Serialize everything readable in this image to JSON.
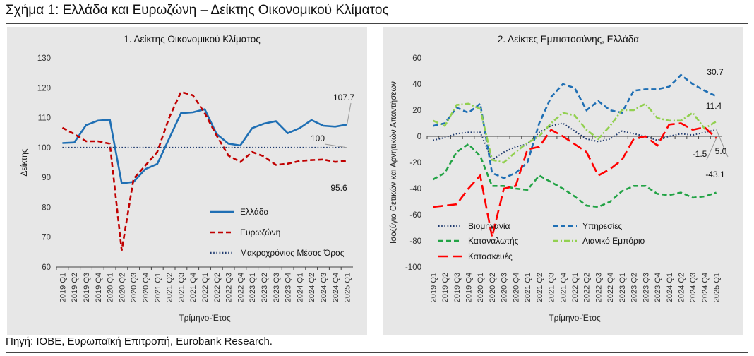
{
  "figure_title": "Σχήμα 1: Ελλάδα και Ευρωζώνη – Δείκτης Οικονομικού Κλίματος",
  "source": "Πηγή: IOBE, Ευρωπαϊκή Επιτροπή, Eurobank Research.",
  "chart_data": [
    {
      "type": "line",
      "title": "1. Δείκτης Οικονομικού Κλίματος",
      "xlabel": "Τρίμηνο-Έτος",
      "ylabel": "Δείκτης",
      "ylim": [
        60,
        130
      ],
      "yticks": [
        "60",
        "70",
        "80",
        "90",
        "100",
        "110",
        "120",
        "130"
      ],
      "categories": [
        "2019 Q1",
        "2019 Q2",
        "2019 Q3",
        "2019 Q4",
        "2020 Q1",
        "2020 Q2",
        "2020 Q3",
        "2020 Q4",
        "2021 Q1",
        "2021 Q2",
        "2021 Q3",
        "2021 Q4",
        "2022 Q1",
        "2022 Q2",
        "2022 Q3",
        "2022 Q4",
        "2023 Q1",
        "2023 Q2",
        "2023 Q3",
        "2023 Q4",
        "2024 Q1",
        "2024 Q2",
        "2024 Q3",
        "2024 Q4",
        "2025 Q1"
      ],
      "legend_position": "bottom-right",
      "grid": false,
      "series": [
        {
          "name": "Ελλάδα",
          "color": "#1f6fb4",
          "dash": "solid",
          "values": [
            101.5,
            101.7,
            107.5,
            109.0,
            109.3,
            88.0,
            88.5,
            92.8,
            94.5,
            103.0,
            111.5,
            111.8,
            112.8,
            104.5,
            101.3,
            100.7,
            106.5,
            108.0,
            108.8,
            104.8,
            106.5,
            109.2,
            107.3,
            107.0,
            107.7
          ]
        },
        {
          "name": "Ευρωζώνη",
          "color": "#c00000",
          "dash": "dashed",
          "values": [
            106.6,
            104.5,
            102.1,
            102.1,
            101.3,
            65.5,
            89.5,
            94.0,
            98.5,
            110.0,
            118.6,
            117.5,
            111.5,
            104.0,
            97.3,
            95.2,
            98.5,
            97.0,
            94.2,
            94.6,
            95.5,
            95.8,
            96.0,
            95.2,
            95.6
          ]
        },
        {
          "name": "Μακροχρόνιος Μέσος Όρος",
          "color": "#1f3a6e",
          "dash": "dotted",
          "values": [
            100,
            100,
            100,
            100,
            100,
            100,
            100,
            100,
            100,
            100,
            100,
            100,
            100,
            100,
            100,
            100,
            100,
            100,
            100,
            100,
            100,
            100,
            100,
            100,
            100
          ]
        }
      ],
      "annotations": [
        "107.7",
        "100",
        "95.6"
      ]
    },
    {
      "type": "line",
      "title": "2. Δείκτες Εμπιστοσύνης, Ελλάδα",
      "xlabel": "Τρίμηνο-Έτος",
      "ylabel": "Ισοζύγιο Θετικών και Αρνητικών Απαντήσεων",
      "ylim": [
        -100,
        60
      ],
      "yticks": [
        "-100",
        "-80",
        "-60",
        "-40",
        "-20",
        "0",
        "20",
        "40",
        "60"
      ],
      "categories": [
        "2019 Q1",
        "2019 Q2",
        "2019 Q3",
        "2019 Q4",
        "2020 Q1",
        "2020 Q2",
        "2020 Q3",
        "2020 Q4",
        "2021 Q1",
        "2021 Q2",
        "2021 Q3",
        "2021 Q4",
        "2022 Q1",
        "2022 Q2",
        "2022 Q3",
        "2022 Q4",
        "2023 Q1",
        "2023 Q2",
        "2023 Q3",
        "2023 Q4",
        "2024 Q1",
        "2024 Q2",
        "2024 Q3",
        "2024 Q4",
        "2025 Q1"
      ],
      "legend_position": "bottom",
      "grid": false,
      "series": [
        {
          "name": "Βιομηχανία",
          "color": "#1f3a6e",
          "dash": "dotted",
          "values": [
            -3,
            -1,
            2,
            3,
            3,
            -18,
            -12,
            -8,
            -6,
            3,
            8,
            10,
            4,
            -2,
            -4,
            -2,
            4,
            2,
            0,
            -3,
            0,
            2,
            1,
            3,
            5.0
          ]
        },
        {
          "name": "Υπηρεσίες",
          "color": "#1f6fb4",
          "dash": "dashed",
          "values": [
            8,
            10,
            22,
            18,
            25,
            -28,
            -32,
            -28,
            -20,
            10,
            30,
            40,
            37,
            20,
            27,
            20,
            18,
            35,
            36,
            36,
            38,
            47,
            40,
            35,
            30.7
          ]
        },
        {
          "name": "Καταναλωτής",
          "color": "#22a345",
          "dash": "dashed",
          "values": [
            -33,
            -28,
            -12,
            -6,
            -15,
            -38,
            -38,
            -40,
            -41,
            -30,
            -35,
            -40,
            -46,
            -53,
            -54,
            -50,
            -42,
            -38,
            -38,
            -44,
            -45,
            -43,
            -47,
            -46,
            -43.1
          ]
        },
        {
          "name": "Λιανικό Εμπόριο",
          "color": "#92d050",
          "dash": "dashdot",
          "values": [
            12,
            8,
            24,
            25,
            21,
            -18,
            -20,
            -12,
            -5,
            0,
            10,
            18,
            16,
            5,
            -2,
            8,
            20,
            20,
            25,
            14,
            12,
            12,
            18,
            6,
            11.4
          ]
        },
        {
          "name": "Κατασκευές",
          "color": "#ff0000",
          "dash": "longdash",
          "values": [
            -54,
            -53,
            -52,
            -40,
            -30,
            -77,
            -40,
            -38,
            -10,
            -8,
            5,
            0,
            -6,
            -12,
            -30,
            -25,
            -18,
            -2,
            0,
            -7,
            9,
            10,
            5,
            7,
            -1.5
          ]
        }
      ],
      "annotations": [
        "30.7",
        "11.4",
        "-1.5",
        "5.0",
        "-43.1"
      ]
    }
  ]
}
